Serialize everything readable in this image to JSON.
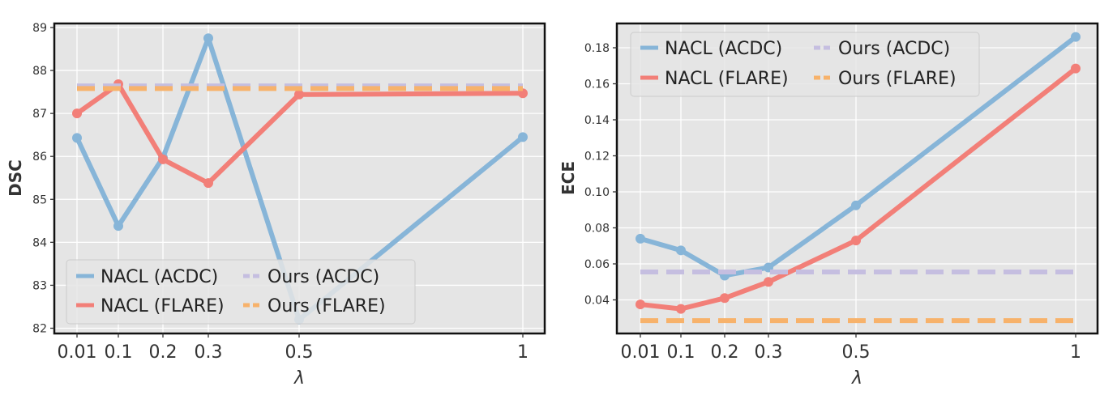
{
  "chart_data": [
    {
      "type": "line",
      "xlabel": "λ",
      "ylabel": "DSC",
      "x": [
        0.01,
        0.1,
        0.2,
        0.3,
        0.5,
        1
      ],
      "x_tick_labels": [
        "0.01",
        "0.1",
        "0.2",
        "0.3",
        "0.5",
        "1"
      ],
      "x_scale": "categorical-spacing (ticks not evenly spaced)",
      "ylim": [
        81.9,
        89.1
      ],
      "y_ticks": [
        82,
        83,
        84,
        85,
        86,
        87,
        88,
        89
      ],
      "y_tick_labels": [
        "82",
        "83",
        "84",
        "85",
        "86",
        "87",
        "88",
        "89"
      ],
      "grid": true,
      "legend_placement": "lower-left",
      "series": [
        {
          "name": "NACL (ACDC)",
          "color": "#87b5d8",
          "style": "solid",
          "markers": true,
          "values": [
            86.43,
            84.38,
            85.97,
            88.75,
            82.2,
            86.45
          ]
        },
        {
          "name": "NACL (FLARE)",
          "color": "#f27f78",
          "style": "solid",
          "markers": true,
          "values": [
            87.0,
            87.68,
            85.93,
            85.38,
            87.44,
            87.47
          ]
        },
        {
          "name": "Ours (ACDC)",
          "color": "#c5bee0",
          "style": "dashed",
          "markers": false,
          "values": [
            87.64,
            87.64,
            87.64,
            87.64,
            87.64,
            87.64
          ]
        },
        {
          "name": "Ours (FLARE)",
          "color": "#f7b26b",
          "style": "dashed",
          "markers": false,
          "values": [
            87.58,
            87.58,
            87.58,
            87.58,
            87.58,
            87.58
          ]
        }
      ]
    },
    {
      "type": "line",
      "xlabel": "λ",
      "ylabel": "ECE",
      "x": [
        0.01,
        0.1,
        0.2,
        0.3,
        0.5,
        1
      ],
      "x_tick_labels": [
        "0.01",
        "0.1",
        "0.2",
        "0.3",
        "0.5",
        "1"
      ],
      "x_scale": "categorical-spacing (ticks not evenly spaced)",
      "ylim": [
        0.025,
        0.19
      ],
      "y_ticks": [
        0.04,
        0.06,
        0.08,
        0.1,
        0.12,
        0.14,
        0.16,
        0.18
      ],
      "y_tick_labels": [
        "0.04",
        "0.06",
        "0.08",
        "0.10",
        "0.12",
        "0.14",
        "0.16",
        "0.18"
      ],
      "grid": true,
      "legend_placement": "upper-left",
      "series": [
        {
          "name": "NACL (ACDC)",
          "color": "#87b5d8",
          "style": "solid",
          "markers": true,
          "values": [
            0.074,
            0.0675,
            0.0535,
            0.058,
            0.0925,
            0.186
          ]
        },
        {
          "name": "NACL (FLARE)",
          "color": "#f27f78",
          "style": "solid",
          "markers": true,
          "values": [
            0.0375,
            0.035,
            0.041,
            0.05,
            0.073,
            0.1685
          ]
        },
        {
          "name": "Ours (ACDC)",
          "color": "#c5bee0",
          "style": "dashed",
          "markers": false,
          "values": [
            0.0555,
            0.0555,
            0.0555,
            0.0555,
            0.0555,
            0.0555
          ]
        },
        {
          "name": "Ours (FLARE)",
          "color": "#f7b26b",
          "style": "dashed",
          "markers": false,
          "values": [
            0.0285,
            0.0285,
            0.0285,
            0.0285,
            0.0285,
            0.0285
          ]
        }
      ]
    }
  ]
}
